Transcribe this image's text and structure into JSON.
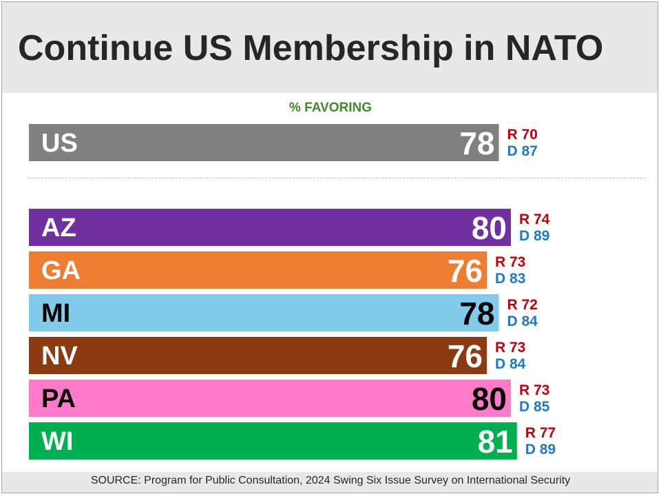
{
  "title": "Continue US Membership in NATO",
  "subtitle": "% FAVORING",
  "source": "SOURCE: Program for Public Consultation, 2024 Swing Six Issue Survey on International Security",
  "colors": {
    "republican": "#c0000d",
    "democrat": "#1f78c0"
  },
  "chart_data": {
    "type": "bar",
    "orientation": "horizontal",
    "title": "Continue US Membership in NATO",
    "subtitle": "% FAVORING",
    "xlim": [
      0,
      100
    ],
    "grid": false,
    "categories": [
      "US",
      "AZ",
      "GA",
      "MI",
      "NV",
      "PA",
      "WI"
    ],
    "values": [
      78,
      80,
      76,
      78,
      76,
      80,
      81
    ],
    "republican": [
      70,
      74,
      73,
      72,
      73,
      73,
      77
    ],
    "democrat": [
      87,
      89,
      83,
      84,
      84,
      85,
      89
    ],
    "bar_colors": [
      "#808080",
      "#7030a0",
      "#ed7d31",
      "#83cbeb",
      "#8b3a12",
      "#ff7ac8",
      "#00b050"
    ],
    "label_colors": [
      "#ffffff",
      "#ffffff",
      "#ffffff",
      "#000000",
      "#ffffff",
      "#000000",
      "#ffffff"
    ],
    "r_prefix": "R",
    "d_prefix": "D"
  }
}
